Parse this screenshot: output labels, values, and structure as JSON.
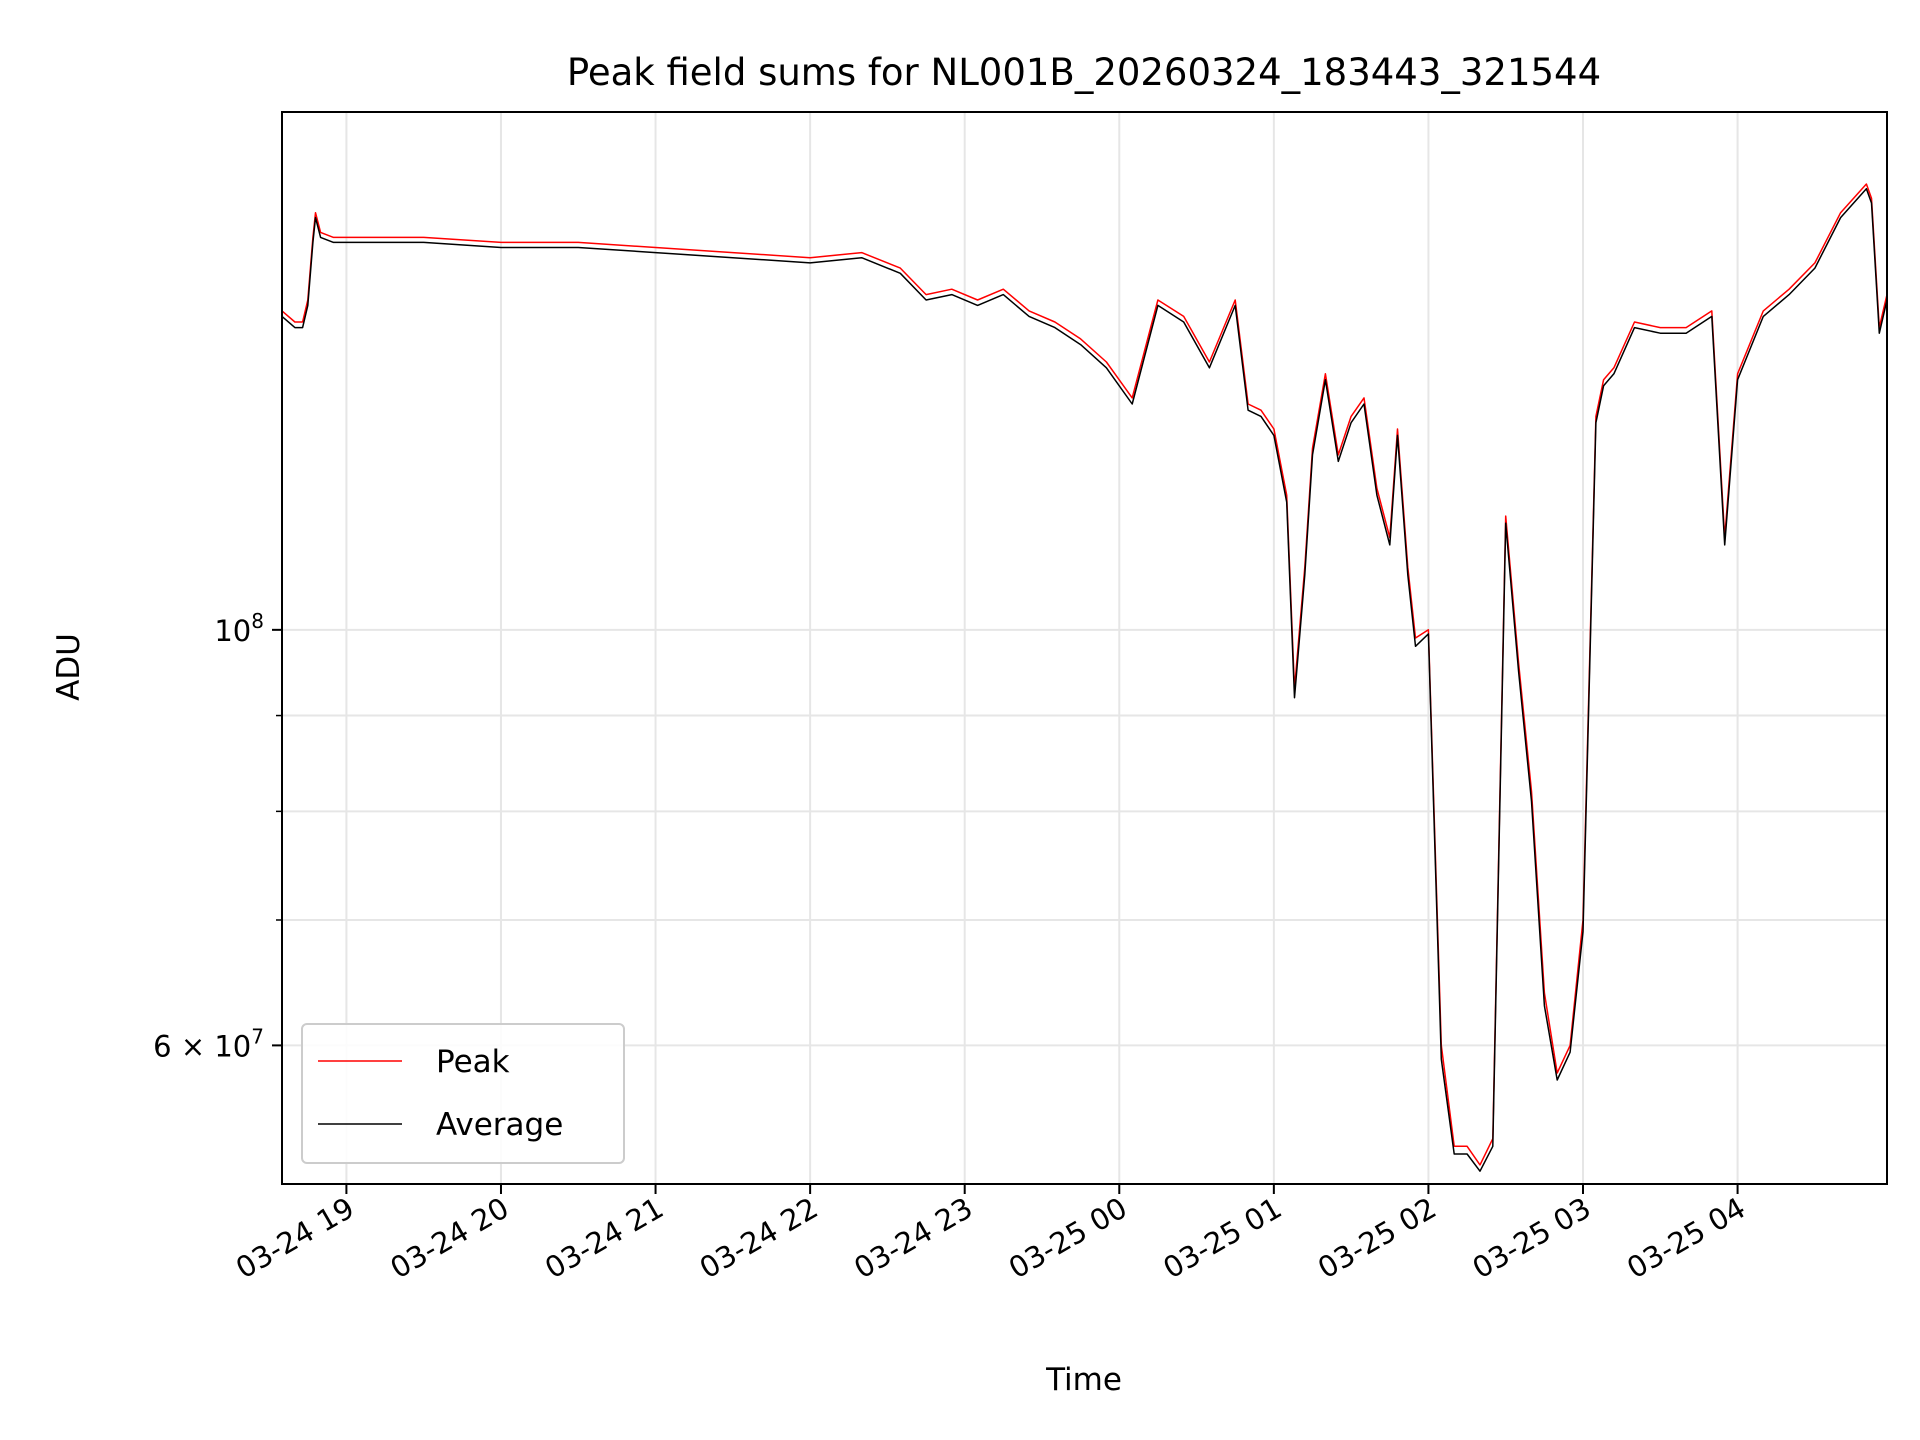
{
  "chart_data": {
    "type": "line",
    "title": "Peak field sums for NL001B_20260324_183443_321544",
    "xlabel": "Time",
    "ylabel": "ADU",
    "y_scale": "log",
    "grid": true,
    "legend_position": "lower-left",
    "xlim": [
      "2026-03-24 18:35",
      "2026-03-25 04:58"
    ],
    "ylim": [
      50600000,
      189000000
    ],
    "x_ticks": [
      {
        "value": "2026-03-24 19:00",
        "label": "03-24 19"
      },
      {
        "value": "2026-03-24 20:00",
        "label": "03-24 20"
      },
      {
        "value": "2026-03-24 21:00",
        "label": "03-24 21"
      },
      {
        "value": "2026-03-24 22:00",
        "label": "03-24 22"
      },
      {
        "value": "2026-03-24 23:00",
        "label": "03-24 23"
      },
      {
        "value": "2026-03-25 00:00",
        "label": "03-25 00"
      },
      {
        "value": "2026-03-25 01:00",
        "label": "03-25 01"
      },
      {
        "value": "2026-03-25 02:00",
        "label": "03-25 02"
      },
      {
        "value": "2026-03-25 03:00",
        "label": "03-25 03"
      },
      {
        "value": "2026-03-25 04:00",
        "label": "03-25 04"
      }
    ],
    "y_major_ticks": [
      {
        "value": 100000000,
        "base": "10",
        "exp": "8"
      },
      {
        "value": 60000000,
        "base": "6 × 10",
        "exp": "7"
      }
    ],
    "y_minor_ticks": [
      200000000,
      90000000,
      80000000,
      70000000,
      50000000
    ],
    "series": [
      {
        "name": "Peak",
        "color": "#ff0000",
        "x": [
          "2026-03-24 18:35",
          "2026-03-24 18:40",
          "2026-03-24 18:43",
          "2026-03-24 18:45",
          "2026-03-24 18:47",
          "2026-03-24 18:48",
          "2026-03-24 18:50",
          "2026-03-24 18:55",
          "2026-03-24 19:00",
          "2026-03-24 19:30",
          "2026-03-24 20:00",
          "2026-03-24 20:30",
          "2026-03-24 21:00",
          "2026-03-24 21:30",
          "2026-03-24 22:00",
          "2026-03-24 22:20",
          "2026-03-24 22:35",
          "2026-03-24 22:45",
          "2026-03-24 22:55",
          "2026-03-24 23:05",
          "2026-03-24 23:15",
          "2026-03-24 23:25",
          "2026-03-24 23:35",
          "2026-03-24 23:45",
          "2026-03-24 23:55",
          "2026-03-25 00:05",
          "2026-03-25 00:15",
          "2026-03-25 00:25",
          "2026-03-25 00:35",
          "2026-03-25 00:45",
          "2026-03-25 00:50",
          "2026-03-25 00:55",
          "2026-03-25 01:00",
          "2026-03-25 01:05",
          "2026-03-25 01:08",
          "2026-03-25 01:12",
          "2026-03-25 01:15",
          "2026-03-25 01:20",
          "2026-03-25 01:25",
          "2026-03-25 01:30",
          "2026-03-25 01:35",
          "2026-03-25 01:40",
          "2026-03-25 01:45",
          "2026-03-25 01:48",
          "2026-03-25 01:52",
          "2026-03-25 01:55",
          "2026-03-25 02:00",
          "2026-03-25 02:05",
          "2026-03-25 02:10",
          "2026-03-25 02:15",
          "2026-03-25 02:20",
          "2026-03-25 02:25",
          "2026-03-25 02:30",
          "2026-03-25 02:35",
          "2026-03-25 02:40",
          "2026-03-25 02:45",
          "2026-03-25 02:50",
          "2026-03-25 02:55",
          "2026-03-25 03:00",
          "2026-03-25 03:05",
          "2026-03-25 03:08",
          "2026-03-25 03:12",
          "2026-03-25 03:20",
          "2026-03-25 03:30",
          "2026-03-25 03:40",
          "2026-03-25 03:50",
          "2026-03-25 03:55",
          "2026-03-25 04:00",
          "2026-03-25 04:10",
          "2026-03-25 04:20",
          "2026-03-25 04:30",
          "2026-03-25 04:40",
          "2026-03-25 04:50",
          "2026-03-25 04:52",
          "2026-03-25 04:55",
          "2026-03-25 04:58"
        ],
        "y": [
          148000000,
          146000000,
          146000000,
          150000000,
          162000000,
          167000000,
          163000000,
          162000000,
          162000000,
          162000000,
          161000000,
          161000000,
          160000000,
          159000000,
          158000000,
          159000000,
          156000000,
          151000000,
          152000000,
          150000000,
          152000000,
          148000000,
          146000000,
          143000000,
          139000000,
          133000000,
          150000000,
          147000000,
          139000000,
          150000000,
          132000000,
          131000000,
          128000000,
          118000000,
          93000000,
          108000000,
          125000000,
          137000000,
          124000000,
          130000000,
          133000000,
          119000000,
          112000000,
          128000000,
          108000000,
          99000000,
          100000000,
          60000000,
          53000000,
          53000000,
          51800000,
          53500000,
          115000000,
          96000000,
          82000000,
          64000000,
          58000000,
          60000000,
          70000000,
          130000000,
          136000000,
          138000000,
          146000000,
          145000000,
          145000000,
          148000000,
          112000000,
          137000000,
          148000000,
          152000000,
          157000000,
          167000000,
          173000000,
          170000000,
          145000000,
          151000000
        ]
      },
      {
        "name": "Average",
        "color": "#000000",
        "x": [
          "2026-03-24 18:35",
          "2026-03-24 18:40",
          "2026-03-24 18:43",
          "2026-03-24 18:45",
          "2026-03-24 18:47",
          "2026-03-24 18:48",
          "2026-03-24 18:50",
          "2026-03-24 18:55",
          "2026-03-24 19:00",
          "2026-03-24 19:30",
          "2026-03-24 20:00",
          "2026-03-24 20:30",
          "2026-03-24 21:00",
          "2026-03-24 21:30",
          "2026-03-24 22:00",
          "2026-03-24 22:20",
          "2026-03-24 22:35",
          "2026-03-24 22:45",
          "2026-03-24 22:55",
          "2026-03-24 23:05",
          "2026-03-24 23:15",
          "2026-03-24 23:25",
          "2026-03-24 23:35",
          "2026-03-24 23:45",
          "2026-03-24 23:55",
          "2026-03-25 00:05",
          "2026-03-25 00:15",
          "2026-03-25 00:25",
          "2026-03-25 00:35",
          "2026-03-25 00:45",
          "2026-03-25 00:50",
          "2026-03-25 00:55",
          "2026-03-25 01:00",
          "2026-03-25 01:05",
          "2026-03-25 01:08",
          "2026-03-25 01:12",
          "2026-03-25 01:15",
          "2026-03-25 01:20",
          "2026-03-25 01:25",
          "2026-03-25 01:30",
          "2026-03-25 01:35",
          "2026-03-25 01:40",
          "2026-03-25 01:45",
          "2026-03-25 01:48",
          "2026-03-25 01:52",
          "2026-03-25 01:55",
          "2026-03-25 02:00",
          "2026-03-25 02:05",
          "2026-03-25 02:10",
          "2026-03-25 02:15",
          "2026-03-25 02:20",
          "2026-03-25 02:25",
          "2026-03-25 02:30",
          "2026-03-25 02:35",
          "2026-03-25 02:40",
          "2026-03-25 02:45",
          "2026-03-25 02:50",
          "2026-03-25 02:55",
          "2026-03-25 03:00",
          "2026-03-25 03:05",
          "2026-03-25 03:08",
          "2026-03-25 03:12",
          "2026-03-25 03:20",
          "2026-03-25 03:30",
          "2026-03-25 03:40",
          "2026-03-25 03:50",
          "2026-03-25 03:55",
          "2026-03-25 04:00",
          "2026-03-25 04:10",
          "2026-03-25 04:20",
          "2026-03-25 04:30",
          "2026-03-25 04:40",
          "2026-03-25 04:50",
          "2026-03-25 04:52",
          "2026-03-25 04:55",
          "2026-03-25 04:58"
        ],
        "y": [
          147000000,
          145000000,
          145000000,
          149000000,
          161000000,
          166000000,
          162000000,
          161000000,
          161000000,
          161000000,
          160000000,
          160000000,
          159000000,
          158000000,
          157000000,
          158000000,
          155000000,
          150000000,
          151000000,
          149000000,
          151000000,
          147000000,
          145000000,
          142000000,
          138000000,
          132000000,
          149000000,
          146000000,
          138000000,
          149000000,
          131000000,
          130000000,
          127000000,
          117000000,
          92000000,
          107000000,
          124000000,
          136000000,
          123000000,
          129000000,
          132000000,
          118000000,
          111000000,
          127000000,
          107000000,
          98000000,
          99500000,
          59000000,
          52500000,
          52500000,
          51400000,
          53000000,
          114000000,
          95000000,
          81000000,
          63000000,
          57500000,
          59500000,
          69000000,
          129000000,
          135000000,
          137000000,
          145000000,
          144000000,
          144000000,
          147000000,
          111000000,
          136000000,
          147000000,
          151000000,
          156000000,
          166000000,
          172000000,
          169000000,
          144000000,
          150000000
        ]
      }
    ]
  }
}
